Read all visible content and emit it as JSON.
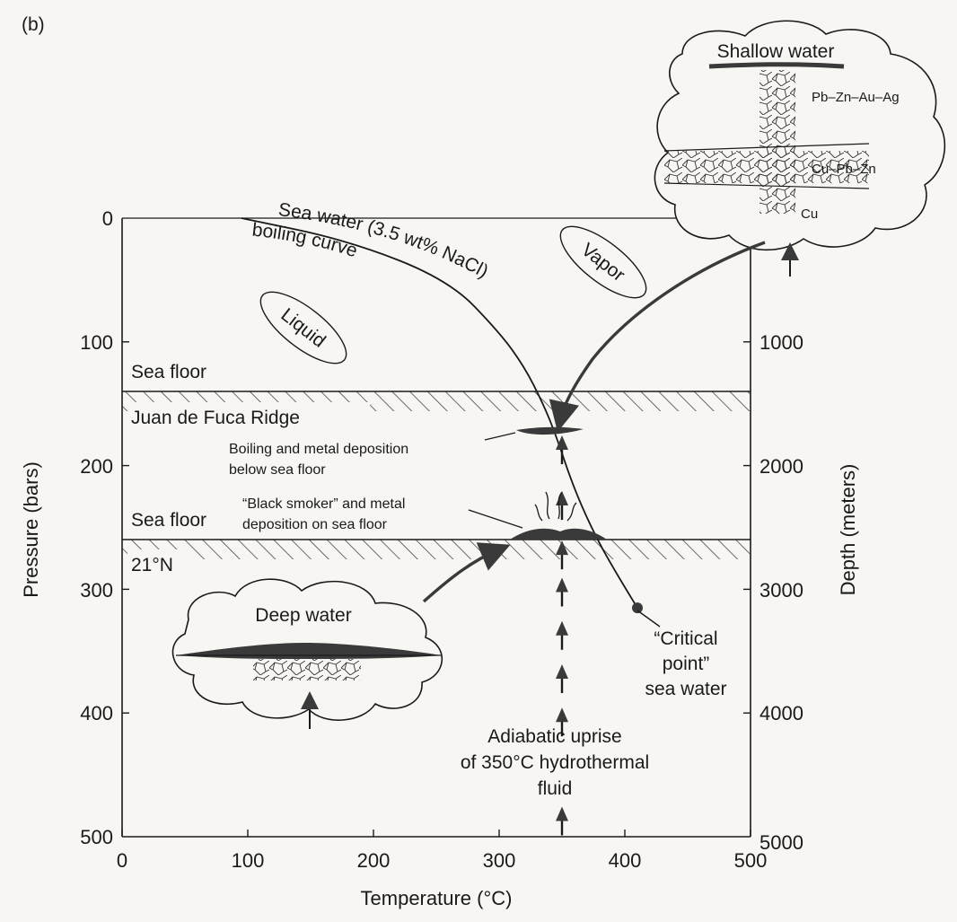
{
  "figure": {
    "panel_label": "(b)",
    "x_axis": {
      "title": "Temperature (°C)",
      "ticks": [
        "0",
        "100",
        "200",
        "300",
        "400",
        "500"
      ],
      "range": [
        0,
        500
      ]
    },
    "y_axis_left": {
      "title": "Pressure (bars)",
      "ticks": [
        "0",
        "100",
        "200",
        "300",
        "400",
        "500"
      ],
      "range": [
        0,
        500
      ]
    },
    "y_axis_right": {
      "title": "Depth (meters)",
      "ticks": [
        "1000",
        "2000",
        "3000",
        "4000",
        "5000"
      ]
    },
    "curve": {
      "label_line1": "Sea water (3.5 wt% NaCl)",
      "label_line2": "boiling curve",
      "points": [
        [
          95,
          0
        ],
        [
          180,
          18
        ],
        [
          260,
          50
        ],
        [
          300,
          92
        ],
        [
          320,
          120
        ],
        [
          335,
          150
        ],
        [
          345,
          175
        ],
        [
          360,
          220
        ],
        [
          378,
          260
        ],
        [
          395,
          290
        ],
        [
          410,
          315
        ]
      ]
    },
    "critical_point": {
      "temperature": 410,
      "pressure": 315,
      "line1": "“Critical",
      "line2": "point”",
      "line3": "sea water"
    },
    "phase_labels": {
      "liquid": "Liquid",
      "vapor": "Vapor"
    },
    "sea_floors": [
      {
        "label": "Sea floor",
        "ridge": "Juan de Fuca Ridge",
        "pressure": 140
      },
      {
        "label": "Sea floor",
        "ridge": "21°N",
        "pressure": 258
      }
    ],
    "annotations": {
      "boiling_line1": "Boiling and metal deposition",
      "boiling_line2": "below sea floor",
      "smoker_line1": "“Black smoker” and metal",
      "smoker_line2": "deposition on sea floor",
      "uprise_line1": "Adiabatic uprise",
      "uprise_line2": "of 350°C hydrothermal",
      "uprise_line3": "fluid"
    },
    "uprise": {
      "temperature": 350,
      "arrow_pressures": [
        180,
        225,
        265,
        295,
        330,
        365,
        400,
        480
      ]
    },
    "insets": {
      "shallow": {
        "title": "Shallow water",
        "ore1": "Pb–Zn–Au–Ag",
        "ore2": "Cu–Pb–Zn",
        "ore3": "Cu"
      },
      "deep": {
        "title": "Deep water"
      }
    },
    "colors": {
      "ink": "#1a1a1a",
      "background": "#f7f6f2",
      "deposit": "#3a3a3a"
    }
  }
}
